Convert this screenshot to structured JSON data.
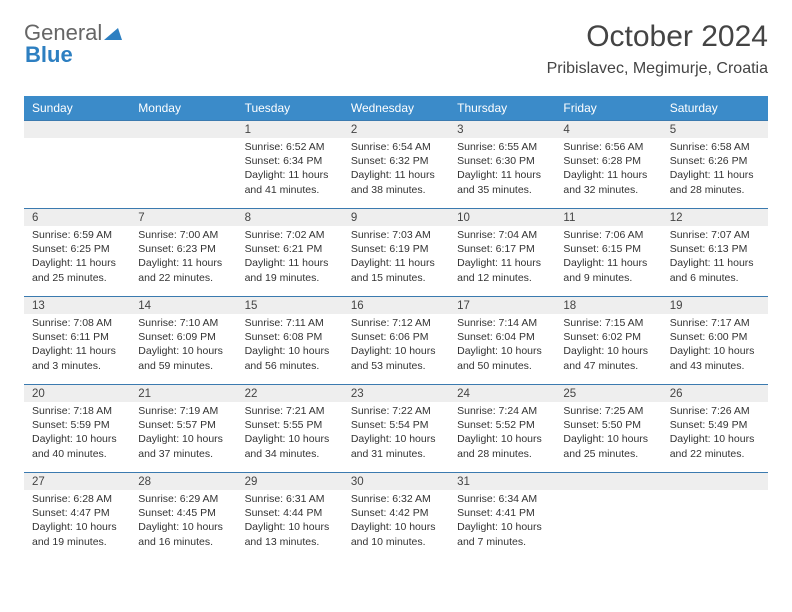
{
  "logo": {
    "text1": "General",
    "text2": "Blue"
  },
  "title": "October 2024",
  "location": "Pribislavec, Megimurje, Croatia",
  "colors": {
    "header_bg": "#3b8bc9",
    "header_text": "#ffffff",
    "daynum_bg": "#eeeeee",
    "daynum_border": "#3b7aaf",
    "text": "#333333",
    "logo_gray": "#666666",
    "logo_blue": "#2d7fc1"
  },
  "day_headers": [
    "Sunday",
    "Monday",
    "Tuesday",
    "Wednesday",
    "Thursday",
    "Friday",
    "Saturday"
  ],
  "weeks": [
    [
      null,
      null,
      {
        "n": "1",
        "sr": "Sunrise: 6:52 AM",
        "ss": "Sunset: 6:34 PM",
        "dl": "Daylight: 11 hours and 41 minutes."
      },
      {
        "n": "2",
        "sr": "Sunrise: 6:54 AM",
        "ss": "Sunset: 6:32 PM",
        "dl": "Daylight: 11 hours and 38 minutes."
      },
      {
        "n": "3",
        "sr": "Sunrise: 6:55 AM",
        "ss": "Sunset: 6:30 PM",
        "dl": "Daylight: 11 hours and 35 minutes."
      },
      {
        "n": "4",
        "sr": "Sunrise: 6:56 AM",
        "ss": "Sunset: 6:28 PM",
        "dl": "Daylight: 11 hours and 32 minutes."
      },
      {
        "n": "5",
        "sr": "Sunrise: 6:58 AM",
        "ss": "Sunset: 6:26 PM",
        "dl": "Daylight: 11 hours and 28 minutes."
      }
    ],
    [
      {
        "n": "6",
        "sr": "Sunrise: 6:59 AM",
        "ss": "Sunset: 6:25 PM",
        "dl": "Daylight: 11 hours and 25 minutes."
      },
      {
        "n": "7",
        "sr": "Sunrise: 7:00 AM",
        "ss": "Sunset: 6:23 PM",
        "dl": "Daylight: 11 hours and 22 minutes."
      },
      {
        "n": "8",
        "sr": "Sunrise: 7:02 AM",
        "ss": "Sunset: 6:21 PM",
        "dl": "Daylight: 11 hours and 19 minutes."
      },
      {
        "n": "9",
        "sr": "Sunrise: 7:03 AM",
        "ss": "Sunset: 6:19 PM",
        "dl": "Daylight: 11 hours and 15 minutes."
      },
      {
        "n": "10",
        "sr": "Sunrise: 7:04 AM",
        "ss": "Sunset: 6:17 PM",
        "dl": "Daylight: 11 hours and 12 minutes."
      },
      {
        "n": "11",
        "sr": "Sunrise: 7:06 AM",
        "ss": "Sunset: 6:15 PM",
        "dl": "Daylight: 11 hours and 9 minutes."
      },
      {
        "n": "12",
        "sr": "Sunrise: 7:07 AM",
        "ss": "Sunset: 6:13 PM",
        "dl": "Daylight: 11 hours and 6 minutes."
      }
    ],
    [
      {
        "n": "13",
        "sr": "Sunrise: 7:08 AM",
        "ss": "Sunset: 6:11 PM",
        "dl": "Daylight: 11 hours and 3 minutes."
      },
      {
        "n": "14",
        "sr": "Sunrise: 7:10 AM",
        "ss": "Sunset: 6:09 PM",
        "dl": "Daylight: 10 hours and 59 minutes."
      },
      {
        "n": "15",
        "sr": "Sunrise: 7:11 AM",
        "ss": "Sunset: 6:08 PM",
        "dl": "Daylight: 10 hours and 56 minutes."
      },
      {
        "n": "16",
        "sr": "Sunrise: 7:12 AM",
        "ss": "Sunset: 6:06 PM",
        "dl": "Daylight: 10 hours and 53 minutes."
      },
      {
        "n": "17",
        "sr": "Sunrise: 7:14 AM",
        "ss": "Sunset: 6:04 PM",
        "dl": "Daylight: 10 hours and 50 minutes."
      },
      {
        "n": "18",
        "sr": "Sunrise: 7:15 AM",
        "ss": "Sunset: 6:02 PM",
        "dl": "Daylight: 10 hours and 47 minutes."
      },
      {
        "n": "19",
        "sr": "Sunrise: 7:17 AM",
        "ss": "Sunset: 6:00 PM",
        "dl": "Daylight: 10 hours and 43 minutes."
      }
    ],
    [
      {
        "n": "20",
        "sr": "Sunrise: 7:18 AM",
        "ss": "Sunset: 5:59 PM",
        "dl": "Daylight: 10 hours and 40 minutes."
      },
      {
        "n": "21",
        "sr": "Sunrise: 7:19 AM",
        "ss": "Sunset: 5:57 PM",
        "dl": "Daylight: 10 hours and 37 minutes."
      },
      {
        "n": "22",
        "sr": "Sunrise: 7:21 AM",
        "ss": "Sunset: 5:55 PM",
        "dl": "Daylight: 10 hours and 34 minutes."
      },
      {
        "n": "23",
        "sr": "Sunrise: 7:22 AM",
        "ss": "Sunset: 5:54 PM",
        "dl": "Daylight: 10 hours and 31 minutes."
      },
      {
        "n": "24",
        "sr": "Sunrise: 7:24 AM",
        "ss": "Sunset: 5:52 PM",
        "dl": "Daylight: 10 hours and 28 minutes."
      },
      {
        "n": "25",
        "sr": "Sunrise: 7:25 AM",
        "ss": "Sunset: 5:50 PM",
        "dl": "Daylight: 10 hours and 25 minutes."
      },
      {
        "n": "26",
        "sr": "Sunrise: 7:26 AM",
        "ss": "Sunset: 5:49 PM",
        "dl": "Daylight: 10 hours and 22 minutes."
      }
    ],
    [
      {
        "n": "27",
        "sr": "Sunrise: 6:28 AM",
        "ss": "Sunset: 4:47 PM",
        "dl": "Daylight: 10 hours and 19 minutes."
      },
      {
        "n": "28",
        "sr": "Sunrise: 6:29 AM",
        "ss": "Sunset: 4:45 PM",
        "dl": "Daylight: 10 hours and 16 minutes."
      },
      {
        "n": "29",
        "sr": "Sunrise: 6:31 AM",
        "ss": "Sunset: 4:44 PM",
        "dl": "Daylight: 10 hours and 13 minutes."
      },
      {
        "n": "30",
        "sr": "Sunrise: 6:32 AM",
        "ss": "Sunset: 4:42 PM",
        "dl": "Daylight: 10 hours and 10 minutes."
      },
      {
        "n": "31",
        "sr": "Sunrise: 6:34 AM",
        "ss": "Sunset: 4:41 PM",
        "dl": "Daylight: 10 hours and 7 minutes."
      },
      null,
      null
    ]
  ]
}
